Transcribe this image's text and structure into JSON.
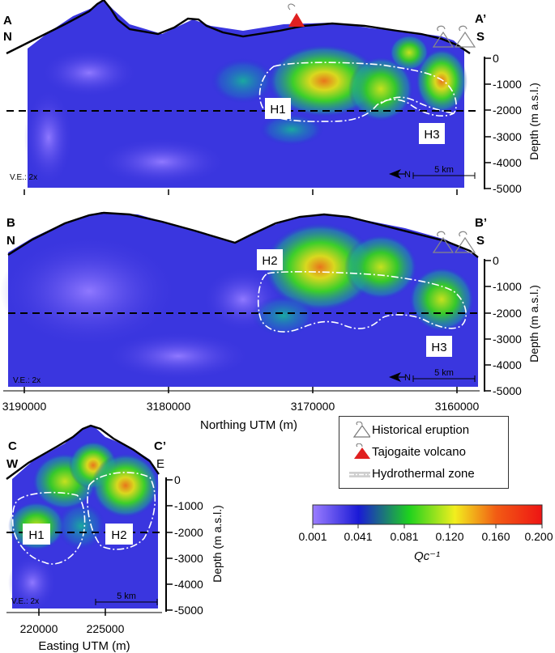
{
  "sections": {
    "a": {
      "start_label": "A",
      "start_dir": "N",
      "end_label": "A’",
      "end_dir": "S",
      "ve": "V.E.: 2x",
      "scale": "5 km",
      "north": "N",
      "zones": [
        "H1",
        "H3"
      ]
    },
    "b": {
      "start_label": "B",
      "start_dir": "N",
      "end_label": "B’",
      "end_dir": "S",
      "ve": "V.E.: 2x",
      "scale": "5 km",
      "north": "N",
      "zones": [
        "H2",
        "H3"
      ]
    },
    "c": {
      "start_label": "C",
      "start_dir": "W",
      "end_label": "C’",
      "end_dir": "E",
      "ve": "V.E.: 2x",
      "scale": "5 km",
      "zones": [
        "H1",
        "H2"
      ]
    }
  },
  "depth_axis": {
    "title": "Depth (m a.s.l.)",
    "ticks": [
      "0",
      "-1000",
      "-2000",
      "-3000",
      "-4000",
      "-5000"
    ]
  },
  "northing_axis": {
    "title": "Northing UTM (m)",
    "ticks": [
      "3190000",
      "3180000",
      "3170000",
      "3160000"
    ]
  },
  "easting_axis": {
    "title": "Easting UTM (m)",
    "ticks": [
      "220000",
      "225000"
    ]
  },
  "legend": {
    "items": [
      {
        "label": "Historical eruption",
        "icon": "eruption-icon"
      },
      {
        "label": "Tajogaite volcano",
        "icon": "volcano-triangle-icon"
      },
      {
        "label": "Hydrothermal zone",
        "icon": "dashdot-line-icon"
      }
    ]
  },
  "colorbar": {
    "ticks": [
      "0.001",
      "0.041",
      "0.081",
      "0.120",
      "0.160",
      "0.200"
    ],
    "label": "Qc⁻¹",
    "colors": [
      "#9b7dff",
      "#1a1ad6",
      "#1ed21e",
      "#f2ee1e",
      "#f25c14",
      "#ee1414"
    ]
  }
}
